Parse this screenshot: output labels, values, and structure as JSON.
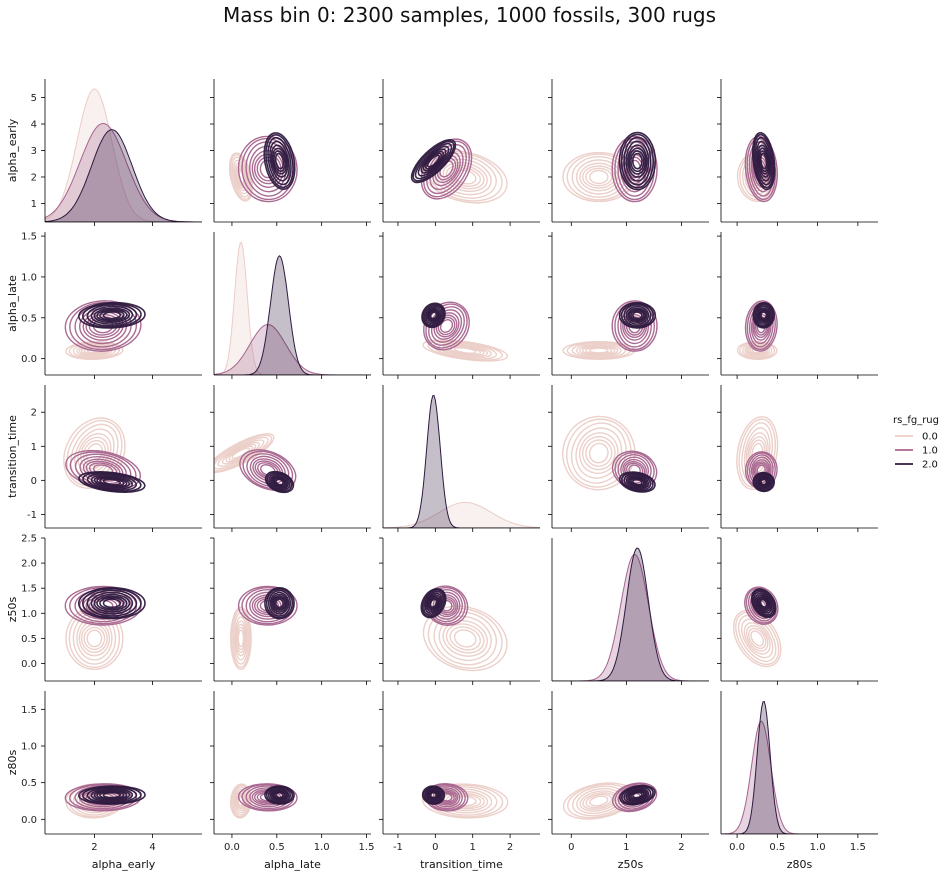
{
  "figure": {
    "title": "Mass bin 0: 2300 samples, 1000 fossils, 300 rugs"
  },
  "chart_data": {
    "type": "pairplot-kde",
    "hue": {
      "title": "rs_fg_rug",
      "levels": [
        "0.0",
        "1.0",
        "2.0"
      ],
      "colors": [
        "#ebcdc7",
        "#a7648e",
        "#2e1a3f"
      ],
      "legend_position": "right"
    },
    "variables": [
      "alpha_early",
      "alpha_late",
      "transition_time",
      "z50s",
      "z80s"
    ],
    "axes": {
      "alpha_early": {
        "lim": [
          0.3,
          5.7
        ],
        "ticks": [
          1,
          2,
          3,
          4,
          5
        ],
        "xticks": [
          2,
          4
        ]
      },
      "alpha_late": {
        "lim": [
          -0.2,
          1.55
        ],
        "ticks": [
          0.0,
          0.5,
          1.0,
          1.5
        ],
        "xticks": [
          0.0,
          0.5,
          1.0,
          1.5
        ]
      },
      "transition_time": {
        "lim": [
          -1.4,
          2.8
        ],
        "ticks": [
          -1,
          0,
          1,
          2
        ],
        "xticks": [
          -1,
          0,
          1,
          2
        ]
      },
      "z50s": {
        "lim": [
          -0.35,
          2.5
        ],
        "ticks": [
          0.0,
          0.5,
          1.0,
          1.5,
          2.0,
          2.5
        ],
        "xticks": [
          0,
          1,
          2
        ]
      },
      "z80s": {
        "lim": [
          -0.2,
          1.75
        ],
        "ticks": [
          0.0,
          0.5,
          1.0,
          1.5
        ],
        "xticks": [
          0.0,
          0.5,
          1.0,
          1.5
        ]
      }
    },
    "group_stats": {
      "0.0": {
        "alpha_early": {
          "mean": 2.0,
          "sd": 0.6,
          "peak": 5.4
        },
        "alpha_late": {
          "mean": 0.1,
          "sd": 0.07,
          "peak": 1.45
        },
        "transition_time": {
          "mean": 0.8,
          "sd": 0.7,
          "peak": 0.5
        },
        "z50s": {
          "mean": 0.5,
          "sd": 0.4,
          "peak": 0.0
        },
        "z80s": {
          "mean": 0.25,
          "sd": 0.15,
          "peak": 0.0
        }
      },
      "1.0": {
        "alpha_early": {
          "mean": 2.3,
          "sd": 0.8,
          "peak": 4.0
        },
        "alpha_late": {
          "mean": 0.4,
          "sd": 0.2,
          "peak": 0.55
        },
        "transition_time": {
          "mean": 0.3,
          "sd": 0.35,
          "peak": 0.0
        },
        "z50s": {
          "mean": 1.15,
          "sd": 0.25,
          "peak": 2.0
        },
        "z80s": {
          "mean": 0.3,
          "sd": 0.12,
          "peak": 1.4
        }
      },
      "2.0": {
        "alpha_early": {
          "mean": 2.6,
          "sd": 0.7,
          "peak": 3.75
        },
        "alpha_late": {
          "mean": 0.53,
          "sd": 0.1,
          "peak": 1.3
        },
        "transition_time": {
          "mean": -0.05,
          "sd": 0.18,
          "peak": 2.6
        },
        "z50s": {
          "mean": 1.2,
          "sd": 0.2,
          "peak": 2.1
        },
        "z80s": {
          "mean": 0.33,
          "sd": 0.08,
          "peak": 1.65
        }
      }
    },
    "correlation_note_free": true,
    "grid": false
  }
}
